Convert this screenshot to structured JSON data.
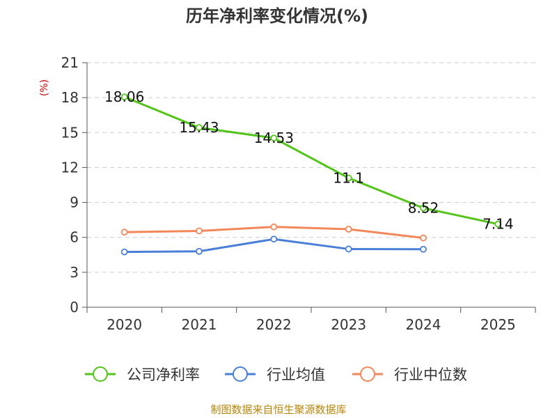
{
  "chart_data": {
    "type": "line",
    "title": "历年净利率变化情况(%)",
    "ylabel": "(%)",
    "xlabel": "",
    "categories": [
      "2020",
      "2021",
      "2022",
      "2023",
      "2024",
      "2025"
    ],
    "ylim": [
      0,
      21
    ],
    "yticks": [
      0,
      3,
      6,
      9,
      12,
      15,
      18,
      21
    ],
    "grid": true,
    "legend_position": "bottom",
    "series": [
      {
        "name": "公司净利率",
        "color": "#52c41a",
        "values": [
          18.06,
          15.43,
          14.53,
          11.1,
          8.52,
          7.14
        ],
        "data_labels": [
          "18.06",
          "15.43",
          "14.53",
          "11.1",
          "8.52",
          "7.14"
        ]
      },
      {
        "name": "行业均值",
        "color": "#4a7fd8",
        "values": [
          4.75,
          4.8,
          5.85,
          5.0,
          4.98,
          null
        ]
      },
      {
        "name": "行业中位数",
        "color": "#f4875a",
        "values": [
          6.45,
          6.55,
          6.9,
          6.7,
          5.95,
          null
        ]
      }
    ],
    "source": "制图数据来自恒生聚源数据库"
  }
}
